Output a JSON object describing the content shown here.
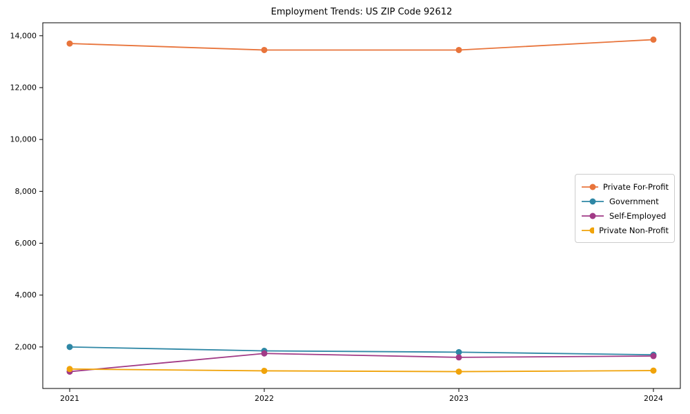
{
  "chart_data": {
    "type": "line",
    "title": "Employment Trends: US ZIP Code 92612",
    "x_labels": [
      "2021",
      "2022",
      "2023",
      "2024"
    ],
    "series": [
      {
        "name": "Private For-Profit",
        "color": "#e8743b",
        "values": [
          13700,
          13450,
          13450,
          13850
        ]
      },
      {
        "name": "Government",
        "color": "#2e87a5",
        "values": [
          2000,
          1850,
          1800,
          1700
        ]
      },
      {
        "name": "Self-Employed",
        "color": "#a13a86",
        "values": [
          1050,
          1750,
          1600,
          1650
        ]
      },
      {
        "name": "Private Non-Profit",
        "color": "#f0a30a",
        "values": [
          1150,
          1080,
          1050,
          1090
        ]
      }
    ],
    "yticks": [
      2000,
      4000,
      6000,
      8000,
      10000,
      12000,
      14000
    ],
    "ytick_labels": [
      "2,000",
      "4,000",
      "6,000",
      "8,000",
      "10,000",
      "12,000",
      "14,000"
    ],
    "ylim": [
      400,
      14500
    ],
    "xlabel": "",
    "ylabel": "",
    "grid": false,
    "legend_position": "center-right",
    "axis_color": "#000000",
    "text_color": "#000000",
    "legend_border_color": "#cccccc"
  }
}
